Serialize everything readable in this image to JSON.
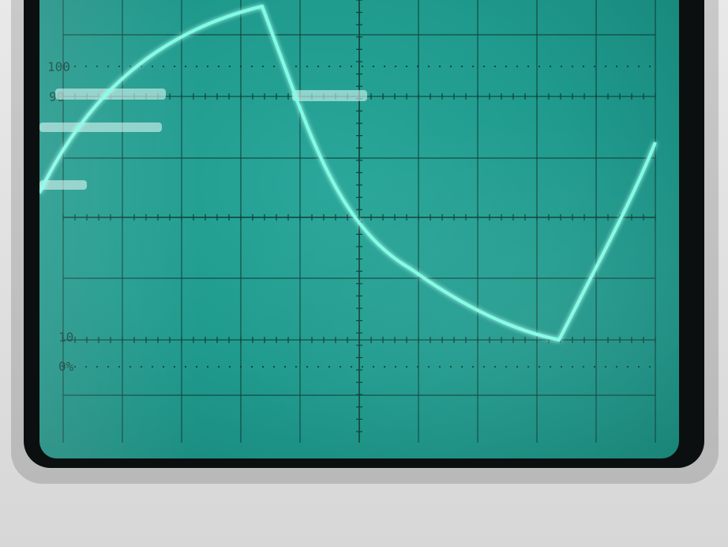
{
  "graticule": {
    "top_label": "100",
    "upper_label": "90",
    "lower_label": "10",
    "bottom_label": "0%"
  },
  "colors": {
    "screen": "#1f9a8d",
    "trace": "#7dffe6",
    "graticule": "#0e3f38",
    "bezel": "#dcdcdc"
  }
}
